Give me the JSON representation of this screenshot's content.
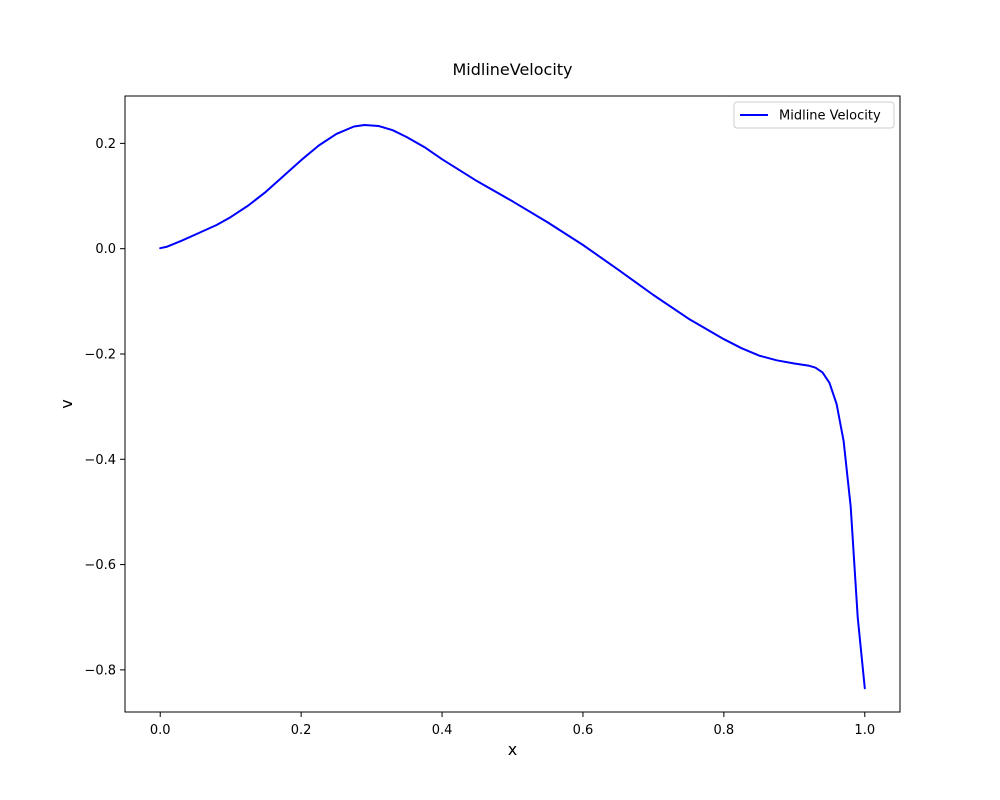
{
  "chart_data": {
    "type": "line",
    "title": "MidlineVelocity",
    "xlabel": "x",
    "ylabel": "v",
    "xlim": [
      -0.05,
      1.05
    ],
    "ylim": [
      -0.88,
      0.29
    ],
    "xticks": [
      0.0,
      0.2,
      0.4,
      0.6,
      0.8,
      1.0
    ],
    "xtick_labels": [
      "0.0",
      "0.2",
      "0.4",
      "0.6",
      "0.8",
      "1.0"
    ],
    "yticks": [
      0.2,
      0.0,
      -0.2,
      -0.4,
      -0.6,
      -0.8
    ],
    "ytick_labels": [
      "0.2",
      "0.0",
      "−0.2",
      "−0.4",
      "−0.6",
      "−0.8"
    ],
    "grid": false,
    "legend_position": "top-right",
    "series": [
      {
        "name": "Midline Velocity",
        "color": "#0000ff",
        "x": [
          0.0,
          0.01,
          0.03,
          0.05,
          0.08,
          0.1,
          0.125,
          0.15,
          0.175,
          0.2,
          0.225,
          0.25,
          0.275,
          0.29,
          0.31,
          0.33,
          0.35,
          0.375,
          0.4,
          0.45,
          0.5,
          0.55,
          0.6,
          0.65,
          0.7,
          0.75,
          0.8,
          0.825,
          0.85,
          0.875,
          0.9,
          0.92,
          0.93,
          0.94,
          0.95,
          0.96,
          0.97,
          0.98,
          0.99,
          1.0
        ],
        "y": [
          0.001,
          0.004,
          0.015,
          0.027,
          0.045,
          0.06,
          0.082,
          0.108,
          0.138,
          0.168,
          0.196,
          0.218,
          0.232,
          0.235,
          0.233,
          0.225,
          0.212,
          0.193,
          0.17,
          0.128,
          0.09,
          0.05,
          0.007,
          -0.04,
          -0.088,
          -0.133,
          -0.172,
          -0.189,
          -0.203,
          -0.212,
          -0.218,
          -0.222,
          -0.226,
          -0.235,
          -0.255,
          -0.295,
          -0.365,
          -0.49,
          -0.7,
          -0.835
        ]
      }
    ]
  }
}
